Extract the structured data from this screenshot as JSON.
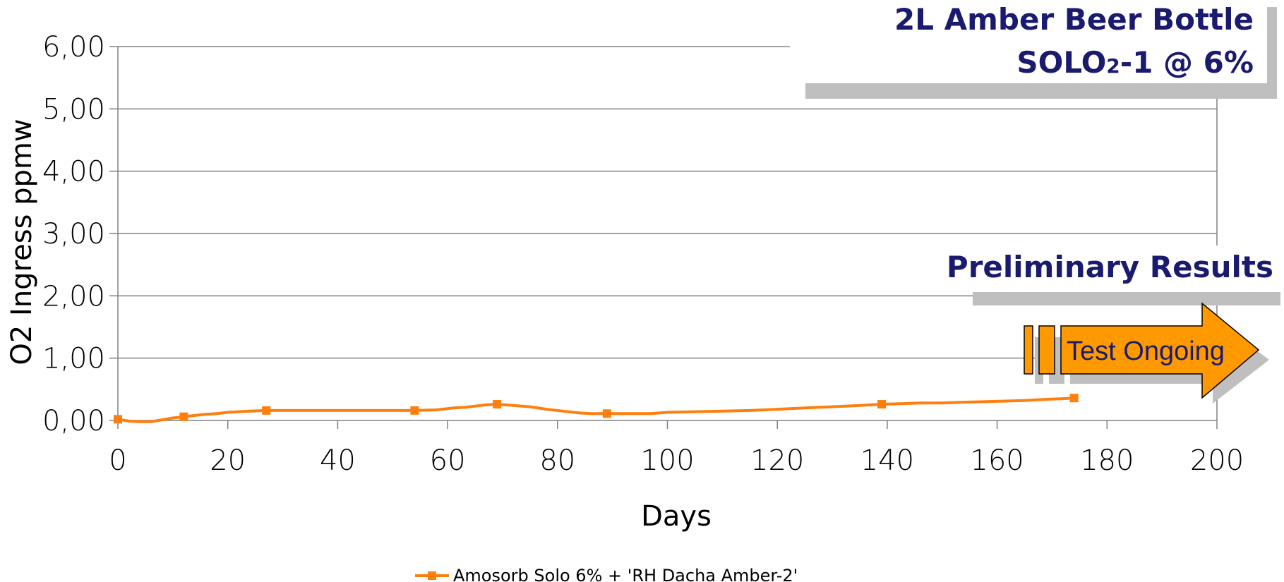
{
  "chart_data": {
    "type": "line",
    "title_line1": "2L Amber Beer Bottle",
    "title_line2_prefix": "SOLO",
    "title_line2_sub": "2",
    "title_line2_suffix": "-1 @ 6%",
    "xlabel": "Days",
    "ylabel": "O2 Ingress ppmw",
    "xlim": [
      0,
      200
    ],
    "ylim": [
      0,
      6
    ],
    "x_ticks": [
      "0",
      "20",
      "40",
      "60",
      "80",
      "100",
      "120",
      "140",
      "160",
      "180",
      "200"
    ],
    "y_ticks": [
      "0,00",
      "1,00",
      "2,00",
      "3,00",
      "4,00",
      "5,00",
      "6,00"
    ],
    "grid": true,
    "legend_position": "bottom",
    "series": [
      {
        "name": "Amosorb Solo 6% + 'RH Dacha Amber-2'",
        "color": "#ff7f0e",
        "marker": "square",
        "x": [
          0,
          2,
          4,
          6,
          8,
          10,
          12,
          14,
          16,
          18,
          20,
          22,
          24,
          27,
          30,
          35,
          40,
          45,
          50,
          54,
          58,
          61,
          63,
          65,
          67,
          69,
          72,
          75,
          78,
          81,
          84,
          86,
          89,
          93,
          97,
          100,
          105,
          110,
          115,
          120,
          125,
          130,
          135,
          139,
          143,
          146,
          150,
          153,
          157,
          161,
          165,
          169,
          172,
          174
        ],
        "y": [
          0.02,
          -0.01,
          -0.02,
          -0.02,
          0.01,
          0.04,
          0.06,
          0.08,
          0.1,
          0.11,
          0.13,
          0.14,
          0.15,
          0.16,
          0.16,
          0.16,
          0.16,
          0.16,
          0.16,
          0.16,
          0.17,
          0.2,
          0.21,
          0.23,
          0.25,
          0.26,
          0.24,
          0.22,
          0.18,
          0.15,
          0.12,
          0.11,
          0.11,
          0.11,
          0.11,
          0.13,
          0.14,
          0.15,
          0.16,
          0.18,
          0.2,
          0.22,
          0.24,
          0.26,
          0.27,
          0.28,
          0.28,
          0.29,
          0.3,
          0.31,
          0.32,
          0.34,
          0.35,
          0.36
        ],
        "marker_x": [
          0,
          12,
          27,
          54,
          69,
          89,
          139,
          174
        ],
        "marker_y": [
          0.02,
          0.06,
          0.16,
          0.16,
          0.26,
          0.11,
          0.26,
          0.36
        ]
      }
    ],
    "annotations": {
      "preliminary": "Preliminary Results",
      "arrow_label": "Test Ongoing"
    }
  },
  "colors": {
    "title": "#1a1a6e",
    "line": "#ff7f0e",
    "arrow_fill": "#ff9900",
    "shadow": "#bfbfbf",
    "grid": "#808080"
  }
}
